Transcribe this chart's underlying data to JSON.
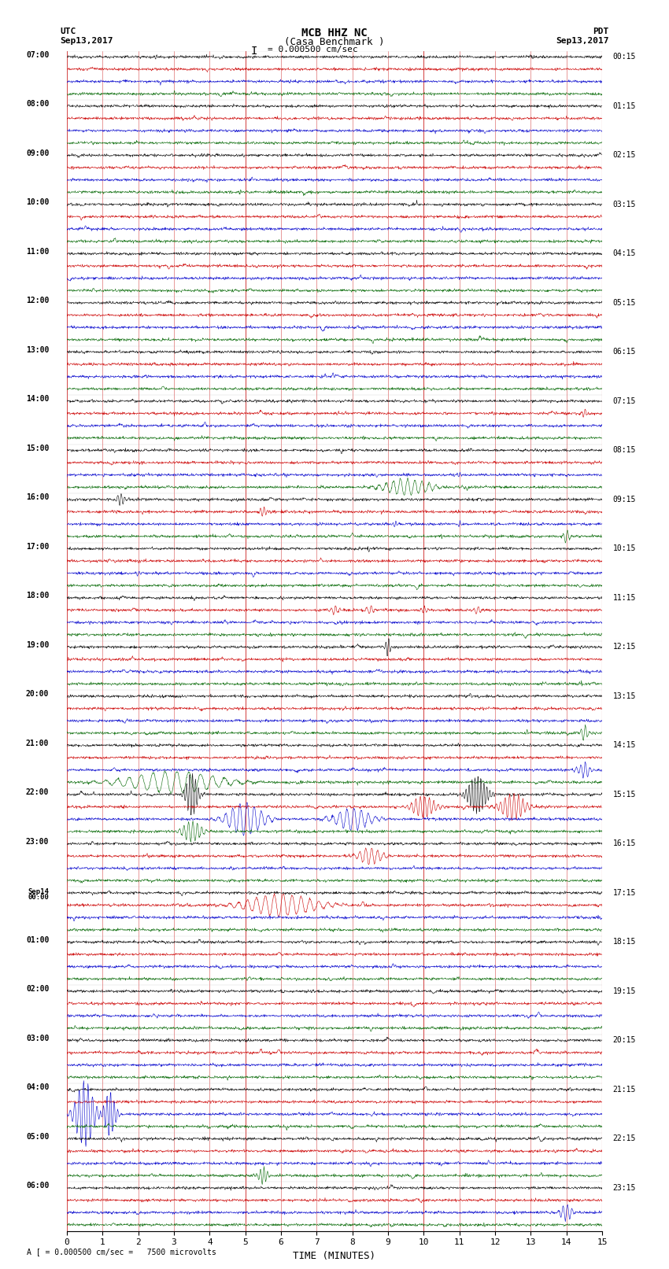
{
  "title_line1": "MCB HHZ NC",
  "title_line2": "(Casa Benchmark )",
  "title_line3": "I = 0.000500 cm/sec",
  "left_label_line1": "UTC",
  "left_label_line2": "Sep13,2017",
  "right_label_line1": "PDT",
  "right_label_line2": "Sep13,2017",
  "bottom_label": "TIME (MINUTES)",
  "bottom_note": "A [ = 0.000500 cm/sec =   7500 microvolts",
  "bg_color": "#ffffff",
  "trace_colors": [
    "#000000",
    "#cc0000",
    "#0000cc",
    "#006600"
  ],
  "grid_color_v": "#cc2222",
  "grid_color_h": "#888888",
  "utc_row_labels": [
    "07:00",
    "08:00",
    "09:00",
    "10:00",
    "11:00",
    "12:00",
    "13:00",
    "14:00",
    "15:00",
    "16:00",
    "17:00",
    "18:00",
    "19:00",
    "20:00",
    "21:00",
    "22:00",
    "23:00",
    "Sep14\n00:00",
    "01:00",
    "02:00",
    "03:00",
    "04:00",
    "05:00",
    "06:00"
  ],
  "pdt_row_labels": [
    "00:15",
    "01:15",
    "02:15",
    "03:15",
    "04:15",
    "05:15",
    "06:15",
    "07:15",
    "08:15",
    "09:15",
    "10:15",
    "11:15",
    "12:15",
    "13:15",
    "14:15",
    "15:15",
    "16:15",
    "17:15",
    "18:15",
    "19:15",
    "20:15",
    "21:15",
    "22:15",
    "23:15"
  ],
  "num_rows": 24,
  "minutes_per_row": 15,
  "samples_per_minute": 100,
  "noise_amplitude": 1.0,
  "seed": 12345
}
